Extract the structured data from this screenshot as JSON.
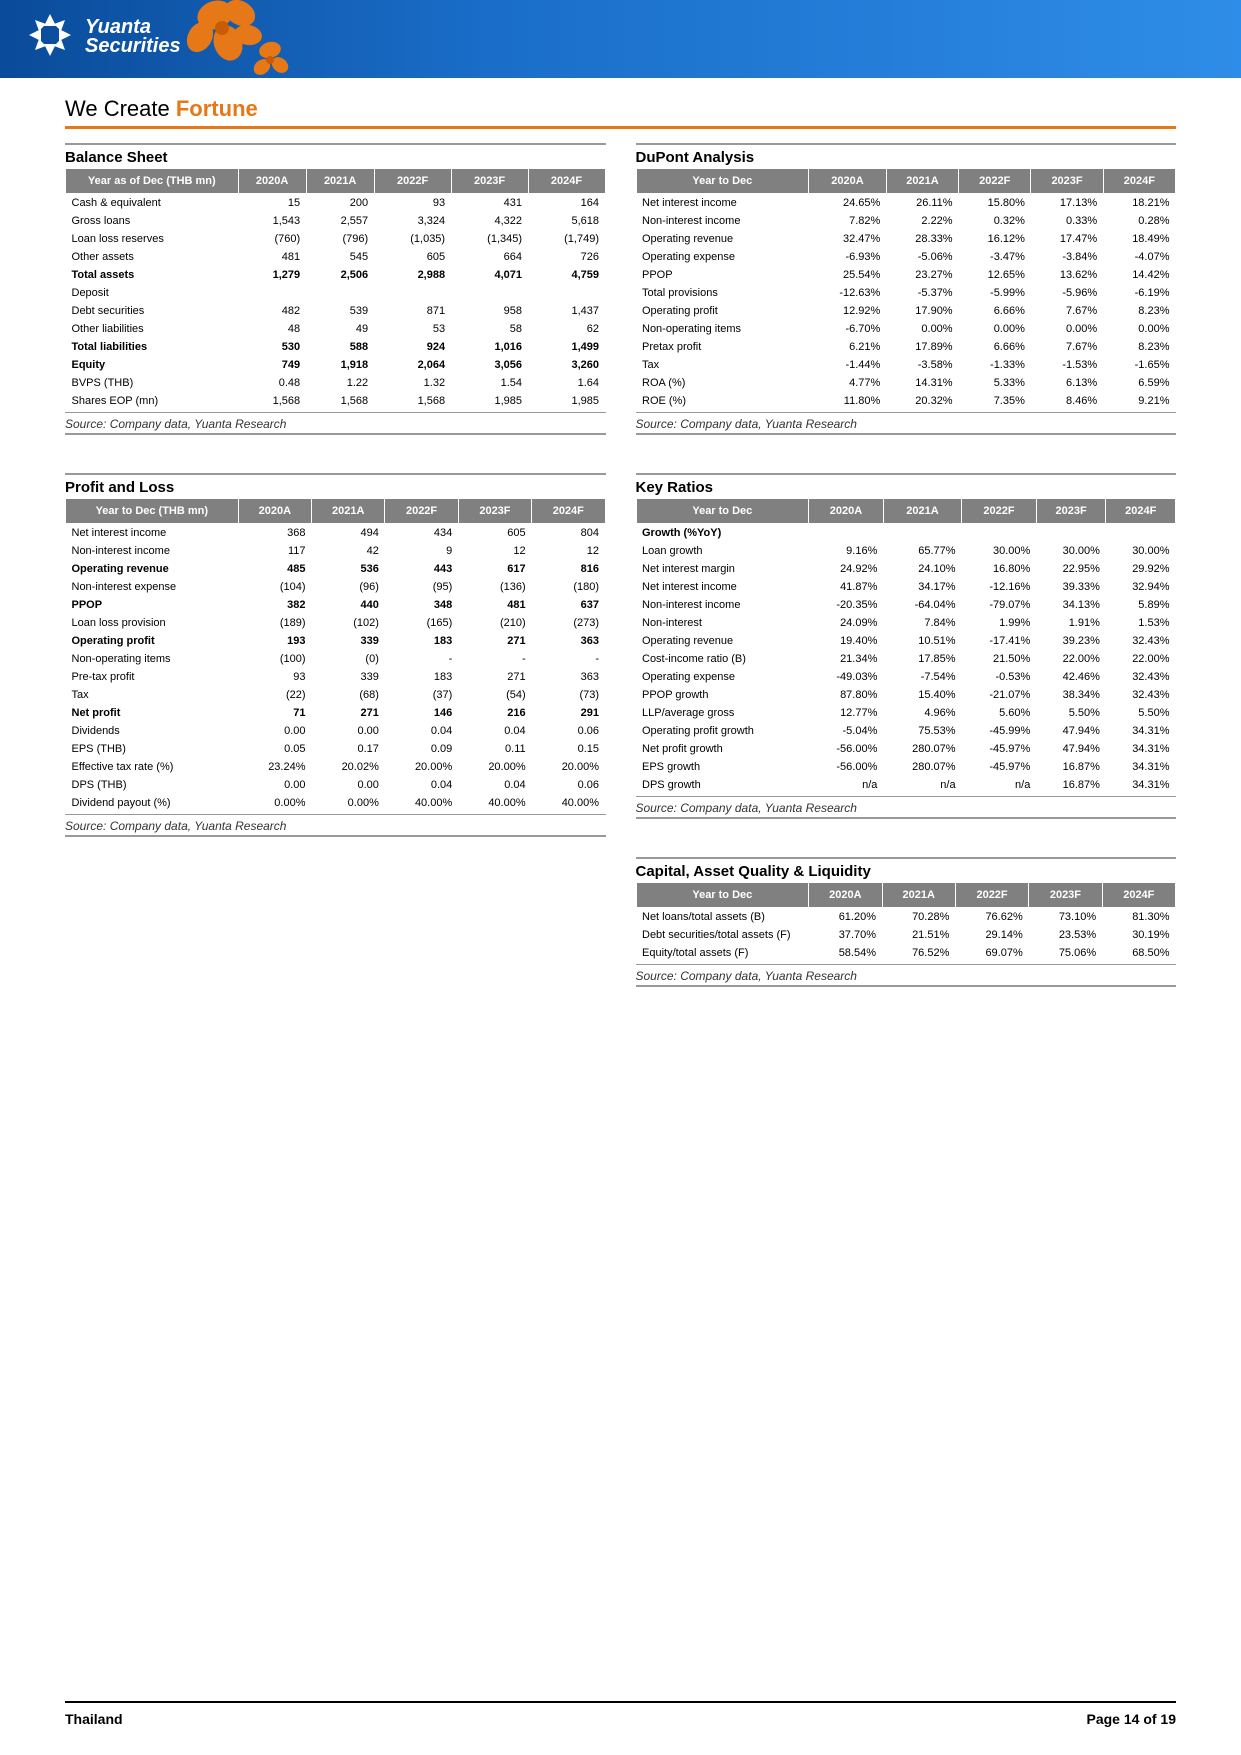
{
  "brand": {
    "name1": "Yuanta",
    "name2": "Securities"
  },
  "tagline": {
    "pre": "We Create ",
    "em": "Fortune"
  },
  "source_text": "Source: Company data, Yuanta Research",
  "footer": {
    "left": "Thailand",
    "right": "Page 14 of 19"
  },
  "columns_years": [
    "2020A",
    "2021A",
    "2022F",
    "2023F",
    "2024F"
  ],
  "balance_sheet": {
    "title": "Balance Sheet",
    "header_label": "Year as of Dec (THB mn)",
    "rows": [
      {
        "label": "Cash & equivalent",
        "v": [
          "15",
          "200",
          "93",
          "431",
          "164"
        ]
      },
      {
        "label": "Gross loans",
        "v": [
          "1,543",
          "2,557",
          "3,324",
          "4,322",
          "5,618"
        ]
      },
      {
        "label": "Loan loss reserves",
        "v": [
          "(760)",
          "(796)",
          "(1,035)",
          "(1,345)",
          "(1,749)"
        ]
      },
      {
        "label": "Other assets",
        "v": [
          "481",
          "545",
          "605",
          "664",
          "726"
        ]
      },
      {
        "label": "Total assets",
        "v": [
          "1,279",
          "2,506",
          "2,988",
          "4,071",
          "4,759"
        ],
        "bold": true
      },
      {
        "label": "Deposit",
        "v": [
          "",
          "",
          "",
          "",
          ""
        ]
      },
      {
        "label": "Debt securities",
        "v": [
          "482",
          "539",
          "871",
          "958",
          "1,437"
        ]
      },
      {
        "label": "Other liabilities",
        "v": [
          "48",
          "49",
          "53",
          "58",
          "62"
        ]
      },
      {
        "label": "Total liabilities",
        "v": [
          "530",
          "588",
          "924",
          "1,016",
          "1,499"
        ],
        "bold": true
      },
      {
        "label": "Equity",
        "v": [
          "749",
          "1,918",
          "2,064",
          "3,056",
          "3,260"
        ],
        "bold": true
      },
      {
        "label": "BVPS (THB)",
        "v": [
          "0.48",
          "1.22",
          "1.32",
          "1.54",
          "1.64"
        ]
      },
      {
        "label": "Shares EOP (mn)",
        "v": [
          "1,568",
          "1,568",
          "1,568",
          "1,985",
          "1,985"
        ]
      }
    ]
  },
  "dupont": {
    "title": "DuPont Analysis",
    "header_label": "Year to Dec",
    "rows": [
      {
        "label": "Net interest income",
        "v": [
          "24.65%",
          "26.11%",
          "15.80%",
          "17.13%",
          "18.21%"
        ]
      },
      {
        "label": "Non-interest income",
        "v": [
          "7.82%",
          "2.22%",
          "0.32%",
          "0.33%",
          "0.28%"
        ]
      },
      {
        "label": "Operating revenue",
        "v": [
          "32.47%",
          "28.33%",
          "16.12%",
          "17.47%",
          "18.49%"
        ]
      },
      {
        "label": "Operating expense",
        "v": [
          "-6.93%",
          "-5.06%",
          "-3.47%",
          "-3.84%",
          "-4.07%"
        ]
      },
      {
        "label": "PPOP",
        "v": [
          "25.54%",
          "23.27%",
          "12.65%",
          "13.62%",
          "14.42%"
        ]
      },
      {
        "label": "Total provisions",
        "v": [
          "-12.63%",
          "-5.37%",
          "-5.99%",
          "-5.96%",
          "-6.19%"
        ]
      },
      {
        "label": "Operating profit",
        "v": [
          "12.92%",
          "17.90%",
          "6.66%",
          "7.67%",
          "8.23%"
        ]
      },
      {
        "label": "Non-operating items",
        "v": [
          "-6.70%",
          "0.00%",
          "0.00%",
          "0.00%",
          "0.00%"
        ]
      },
      {
        "label": "Pretax profit",
        "v": [
          "6.21%",
          "17.89%",
          "6.66%",
          "7.67%",
          "8.23%"
        ]
      },
      {
        "label": "Tax",
        "v": [
          "-1.44%",
          "-3.58%",
          "-1.33%",
          "-1.53%",
          "-1.65%"
        ]
      },
      {
        "label": "ROA (%)",
        "v": [
          "4.77%",
          "14.31%",
          "5.33%",
          "6.13%",
          "6.59%"
        ]
      },
      {
        "label": "ROE (%)",
        "v": [
          "11.80%",
          "20.32%",
          "7.35%",
          "8.46%",
          "9.21%"
        ]
      }
    ]
  },
  "pnl": {
    "title": "Profit and Loss",
    "header_label": "Year to Dec (THB mn)",
    "rows": [
      {
        "label": "Net interest income",
        "v": [
          "368",
          "494",
          "434",
          "605",
          "804"
        ]
      },
      {
        "label": "Non-interest income",
        "v": [
          "117",
          "42",
          "9",
          "12",
          "12"
        ]
      },
      {
        "label": "Operating revenue",
        "v": [
          "485",
          "536",
          "443",
          "617",
          "816"
        ],
        "bold": true
      },
      {
        "label": "Non-interest expense",
        "v": [
          "(104)",
          "(96)",
          "(95)",
          "(136)",
          "(180)"
        ]
      },
      {
        "label": "PPOP",
        "v": [
          "382",
          "440",
          "348",
          "481",
          "637"
        ],
        "bold": true
      },
      {
        "label": "Loan loss provision",
        "v": [
          "(189)",
          "(102)",
          "(165)",
          "(210)",
          "(273)"
        ]
      },
      {
        "label": "Operating profit",
        "v": [
          "193",
          "339",
          "183",
          "271",
          "363"
        ],
        "bold": true
      },
      {
        "label": "Non-operating items",
        "v": [
          "(100)",
          "(0)",
          "-",
          "-",
          "-"
        ]
      },
      {
        "label": "Pre-tax profit",
        "v": [
          "93",
          "339",
          "183",
          "271",
          "363"
        ]
      },
      {
        "label": "Tax",
        "v": [
          "(22)",
          "(68)",
          "(37)",
          "(54)",
          "(73)"
        ]
      },
      {
        "label": "Net profit",
        "v": [
          "71",
          "271",
          "146",
          "216",
          "291"
        ],
        "bold": true
      },
      {
        "label": "Dividends",
        "v": [
          "0.00",
          "0.00",
          "0.04",
          "0.04",
          "0.06"
        ]
      },
      {
        "label": "EPS (THB)",
        "v": [
          "0.05",
          "0.17",
          "0.09",
          "0.11",
          "0.15"
        ]
      },
      {
        "label": "Effective tax rate (%)",
        "v": [
          "23.24%",
          "20.02%",
          "20.00%",
          "20.00%",
          "20.00%"
        ]
      },
      {
        "label": "DPS (THB)",
        "v": [
          "0.00",
          "0.00",
          "0.04",
          "0.04",
          "0.06"
        ]
      },
      {
        "label": "Dividend payout (%)",
        "v": [
          "0.00%",
          "0.00%",
          "40.00%",
          "40.00%",
          "40.00%"
        ]
      }
    ]
  },
  "key_ratios": {
    "title": "Key Ratios",
    "header_label": "Year to Dec",
    "rows": [
      {
        "label": "Growth (%YoY)",
        "v": [
          "",
          "",
          "",
          "",
          ""
        ],
        "bold": true
      },
      {
        "label": "Loan growth",
        "v": [
          "9.16%",
          "65.77%",
          "30.00%",
          "30.00%",
          "30.00%"
        ]
      },
      {
        "label": "Net interest margin",
        "v": [
          "24.92%",
          "24.10%",
          "16.80%",
          "22.95%",
          "29.92%"
        ]
      },
      {
        "label": "Net interest income",
        "v": [
          "41.87%",
          "34.17%",
          "-12.16%",
          "39.33%",
          "32.94%"
        ]
      },
      {
        "label": "Non-interest income",
        "v": [
          "-20.35%",
          "-64.04%",
          "-79.07%",
          "34.13%",
          "5.89%"
        ]
      },
      {
        "label": "Non-interest",
        "v": [
          "24.09%",
          "7.84%",
          "1.99%",
          "1.91%",
          "1.53%"
        ]
      },
      {
        "label": "Operating revenue",
        "v": [
          "19.40%",
          "10.51%",
          "-17.41%",
          "39.23%",
          "32.43%"
        ]
      },
      {
        "label": "Cost-income ratio (B)",
        "v": [
          "21.34%",
          "17.85%",
          "21.50%",
          "22.00%",
          "22.00%"
        ]
      },
      {
        "label": "Operating expense",
        "v": [
          "-49.03%",
          "-7.54%",
          "-0.53%",
          "42.46%",
          "32.43%"
        ]
      },
      {
        "label": "PPOP growth",
        "v": [
          "87.80%",
          "15.40%",
          "-21.07%",
          "38.34%",
          "32.43%"
        ]
      },
      {
        "label": "LLP/average gross",
        "v": [
          "12.77%",
          "4.96%",
          "5.60%",
          "5.50%",
          "5.50%"
        ]
      },
      {
        "label": "Operating profit growth",
        "v": [
          "-5.04%",
          "75.53%",
          "-45.99%",
          "47.94%",
          "34.31%"
        ]
      },
      {
        "label": "Net profit growth",
        "v": [
          "-56.00%",
          "280.07%",
          "-45.97%",
          "47.94%",
          "34.31%"
        ]
      },
      {
        "label": "EPS growth",
        "v": [
          "-56.00%",
          "280.07%",
          "-45.97%",
          "16.87%",
          "34.31%"
        ]
      },
      {
        "label": "DPS growth",
        "v": [
          "n/a",
          "n/a",
          "n/a",
          "16.87%",
          "34.31%"
        ]
      }
    ]
  },
  "capital": {
    "title": "Capital, Asset Quality & Liquidity",
    "header_label": "Year to Dec",
    "rows": [
      {
        "label": "Net loans/total assets (B)",
        "v": [
          "61.20%",
          "70.28%",
          "76.62%",
          "73.10%",
          "81.30%"
        ]
      },
      {
        "label": "Debt securities/total assets (F)",
        "v": [
          "37.70%",
          "21.51%",
          "29.14%",
          "23.53%",
          "30.19%"
        ]
      },
      {
        "label": "Equity/total assets (F)",
        "v": [
          "58.54%",
          "76.52%",
          "69.07%",
          "75.06%",
          "68.50%"
        ]
      }
    ]
  }
}
